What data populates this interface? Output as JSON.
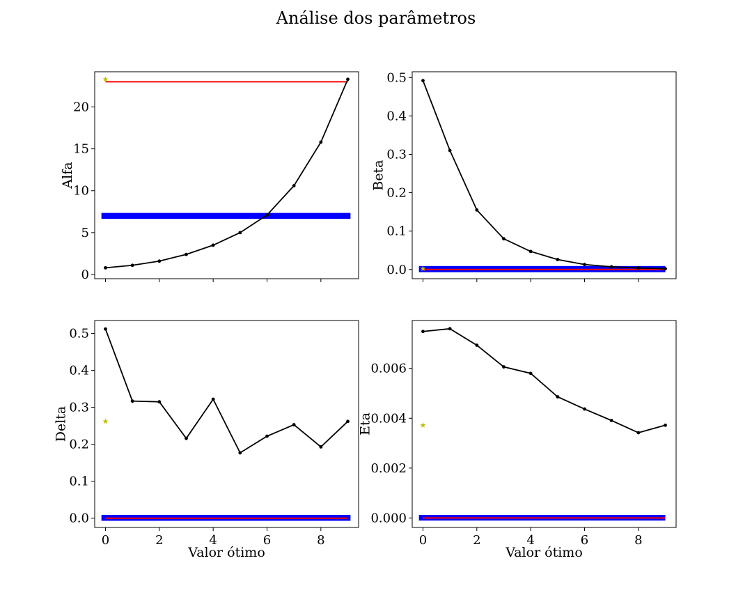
{
  "figure": {
    "title": "Análise dos parâmetros"
  },
  "chart_data": [
    {
      "type": "line",
      "ylabel": "Alfa",
      "xlabel": "",
      "xlim": [
        -0.4,
        9.4
      ],
      "ylim": [
        -0.5,
        24.2
      ],
      "xticks": [
        0,
        2,
        4,
        6,
        8
      ],
      "xtick_labels": [],
      "yticks": [
        0,
        5,
        10,
        15,
        20
      ],
      "ytick_labels": [
        "0",
        "5",
        "10",
        "15",
        "20"
      ],
      "x": [
        0,
        1,
        2,
        3,
        4,
        5,
        6,
        7,
        8,
        9
      ],
      "values": [
        0.8,
        1.1,
        1.6,
        2.4,
        3.5,
        5.0,
        7.1,
        10.6,
        15.8,
        23.3
      ],
      "star": {
        "x": 0,
        "y": 23.3
      },
      "hline_red": {
        "y": 23.0,
        "xmin": 0,
        "xmax": 9.0
      },
      "hband_blue": {
        "y": 7.0,
        "xmin": -0.15,
        "xmax": 9.1,
        "half_height": 0.35
      },
      "colors": {
        "line": "#000000",
        "star": "#bfbf00",
        "red": "#ff0000",
        "blue": "#0000ff"
      }
    },
    {
      "type": "line",
      "ylabel": "Beta",
      "xlabel": "",
      "xlim": [
        -0.4,
        9.4
      ],
      "ylim": [
        -0.024,
        0.515
      ],
      "xticks": [
        0,
        2,
        4,
        6,
        8
      ],
      "xtick_labels": [],
      "yticks": [
        0.0,
        0.1,
        0.2,
        0.3,
        0.4,
        0.5
      ],
      "ytick_labels": [
        "0.0",
        "0.1",
        "0.2",
        "0.3",
        "0.4",
        "0.5"
      ],
      "x": [
        0,
        1,
        2,
        3,
        4,
        5,
        6,
        7,
        8,
        9
      ],
      "values": [
        0.492,
        0.31,
        0.155,
        0.08,
        0.047,
        0.026,
        0.013,
        0.007,
        0.004,
        0.002
      ],
      "star": {
        "x": 0,
        "y": 0.002
      },
      "hline_red": {
        "y": 0.0,
        "xmin": 0,
        "xmax": 9.0
      },
      "hband_blue": {
        "y": 0.001,
        "xmin": -0.15,
        "xmax": 9.0,
        "half_height": 0.008
      },
      "colors": {
        "line": "#000000",
        "star": "#bfbf00",
        "red": "#ff0000",
        "blue": "#0000ff"
      }
    },
    {
      "type": "line",
      "ylabel": "Delta",
      "xlabel": "Valor ótimo",
      "xlim": [
        -0.4,
        9.4
      ],
      "ylim": [
        -0.025,
        0.535
      ],
      "xticks": [
        0,
        2,
        4,
        6,
        8
      ],
      "xtick_labels": [
        "0",
        "2",
        "4",
        "6",
        "8"
      ],
      "yticks": [
        0.0,
        0.1,
        0.2,
        0.3,
        0.4,
        0.5
      ],
      "ytick_labels": [
        "0.0",
        "0.1",
        "0.2",
        "0.3",
        "0.4",
        "0.5"
      ],
      "x": [
        0,
        1,
        2,
        3,
        4,
        5,
        6,
        7,
        8,
        9
      ],
      "values": [
        0.512,
        0.317,
        0.315,
        0.216,
        0.322,
        0.177,
        0.222,
        0.253,
        0.193,
        0.262
      ],
      "star": {
        "x": 0,
        "y": 0.262
      },
      "hline_red": {
        "y": 0.0,
        "xmin": 0,
        "xmax": 9.0
      },
      "hband_blue": {
        "y": 0.001,
        "xmin": -0.15,
        "xmax": 9.1,
        "half_height": 0.008
      },
      "colors": {
        "line": "#000000",
        "star": "#bfbf00",
        "red": "#ff0000",
        "blue": "#0000ff"
      }
    },
    {
      "type": "line",
      "ylabel": "Eta",
      "xlabel": "Valor ótimo",
      "xlim": [
        -0.4,
        9.4
      ],
      "ylim": [
        -0.00038,
        0.00792
      ],
      "xticks": [
        0,
        2,
        4,
        6,
        8
      ],
      "xtick_labels": [
        "0",
        "2",
        "4",
        "6",
        "8"
      ],
      "yticks": [
        0.0,
        0.002,
        0.004,
        0.006
      ],
      "ytick_labels": [
        "0.000",
        "0.002",
        "0.004",
        "0.006"
      ],
      "x": [
        0,
        1,
        2,
        3,
        4,
        5,
        6,
        7,
        8,
        9
      ],
      "values": [
        0.00748,
        0.00759,
        0.00693,
        0.00606,
        0.0058,
        0.00486,
        0.00437,
        0.00391,
        0.00342,
        0.00372
      ],
      "star": {
        "x": 0,
        "y": 0.00372
      },
      "hline_red": {
        "y": 0.0,
        "xmin": 0,
        "xmax": 9.0
      },
      "hband_blue": {
        "y": 1e-05,
        "xmin": -0.15,
        "xmax": 9.0,
        "half_height": 0.00011
      },
      "colors": {
        "line": "#000000",
        "star": "#bfbf00",
        "red": "#ff0000",
        "blue": "#0000ff"
      }
    }
  ]
}
